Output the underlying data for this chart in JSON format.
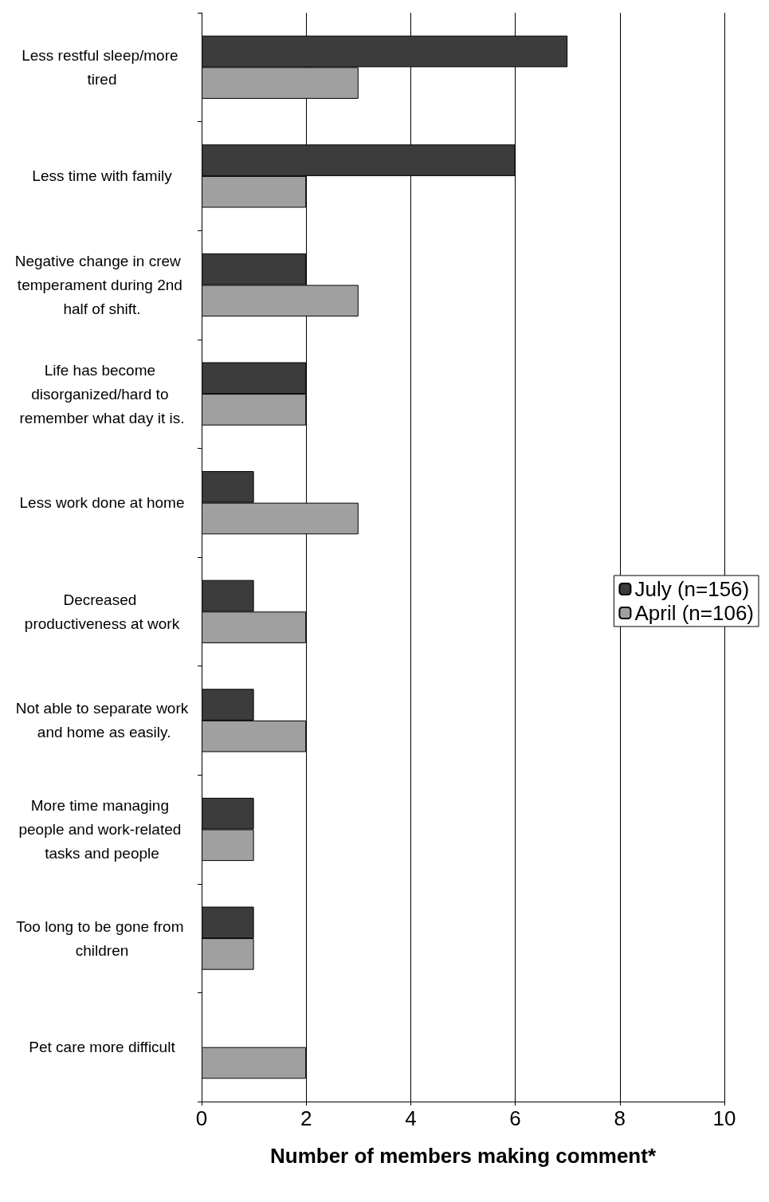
{
  "chart_data": {
    "type": "bar",
    "orientation": "horizontal",
    "xlabel": "Number of members making comment*",
    "categories": [
      "Less restful sleep/more tired",
      "Less time with family",
      "Negative change in crew  temperament during 2nd half of shift.",
      "Life has become disorganized/hard to remember what day it is.",
      "Less work done at home",
      "Decreased productiveness at work",
      "Not able to separate work and home as easily.",
      "More time managing people and work-related tasks and people",
      "Too long to be gone from children",
      "Pet care more difficult"
    ],
    "series": [
      {
        "name": "July (n=156)",
        "color": "#3c3c3c",
        "values": [
          7,
          6,
          2,
          2,
          1,
          1,
          1,
          1,
          1,
          null
        ]
      },
      {
        "name": "April (n=106)",
        "color": "#a0a0a0",
        "values": [
          3,
          2,
          3,
          2,
          3,
          2,
          2,
          1,
          1,
          2
        ]
      }
    ],
    "xlim": [
      0,
      10
    ],
    "xticks": [
      0,
      2,
      4,
      6,
      8,
      10
    ],
    "grid": "x",
    "legend": "right"
  }
}
